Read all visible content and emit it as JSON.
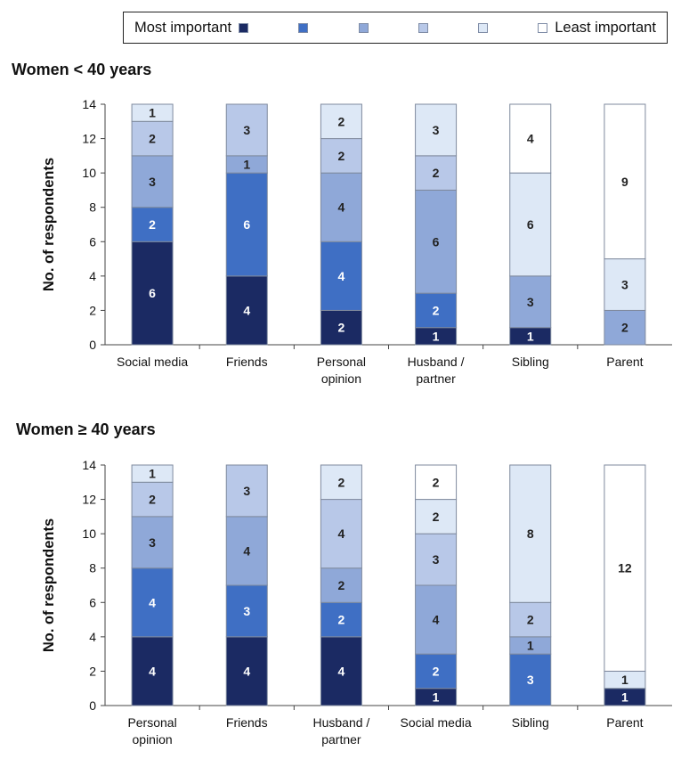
{
  "legend": {
    "items": [
      {
        "label": "Most important",
        "color": "#1b2a63"
      },
      {
        "label": "",
        "color": "#3f6fc4"
      },
      {
        "label": "",
        "color": "#8fa8d8"
      },
      {
        "label": "",
        "color": "#b8c8e8"
      },
      {
        "label": "",
        "color": "#dde8f6"
      },
      {
        "label": "Least important",
        "color": "#ffffff"
      }
    ]
  },
  "chart_data": [
    {
      "type": "bar",
      "stacked": true,
      "title": "Women < 40 years",
      "ylabel": "No. of respondents",
      "ylim": [
        0,
        14
      ],
      "yticks": [
        0,
        2,
        4,
        6,
        8,
        10,
        12,
        14
      ],
      "categories": [
        [
          "Social media"
        ],
        [
          "Friends"
        ],
        [
          "Personal",
          "opinion"
        ],
        [
          "Husband /",
          "partner"
        ],
        [
          "Sibling"
        ],
        [
          "Parent"
        ]
      ],
      "series": [
        {
          "values": [
            6,
            4,
            2,
            1,
            1,
            0
          ]
        },
        {
          "values": [
            2,
            6,
            4,
            2,
            0,
            0
          ]
        },
        {
          "values": [
            3,
            1,
            4,
            6,
            3,
            2
          ]
        },
        {
          "values": [
            2,
            3,
            2,
            2,
            0,
            0
          ]
        },
        {
          "values": [
            1,
            0,
            2,
            3,
            6,
            3
          ]
        },
        {
          "values": [
            0,
            0,
            0,
            0,
            4,
            9
          ]
        }
      ]
    },
    {
      "type": "bar",
      "stacked": true,
      "title": "Women ≥ 40 years",
      "ylabel": "No. of respondents",
      "ylim": [
        0,
        14
      ],
      "yticks": [
        0,
        2,
        4,
        6,
        8,
        10,
        12,
        14
      ],
      "categories": [
        [
          "Personal",
          "opinion"
        ],
        [
          "Friends"
        ],
        [
          "Husband /",
          "partner"
        ],
        [
          "Social media"
        ],
        [
          "Sibling"
        ],
        [
          "Parent"
        ]
      ],
      "series": [
        {
          "values": [
            4,
            4,
            4,
            1,
            0,
            1
          ]
        },
        {
          "values": [
            4,
            3,
            2,
            2,
            3,
            0
          ]
        },
        {
          "values": [
            3,
            4,
            2,
            4,
            1,
            0
          ]
        },
        {
          "values": [
            2,
            3,
            4,
            3,
            2,
            0
          ]
        },
        {
          "values": [
            1,
            0,
            2,
            2,
            8,
            1
          ]
        },
        {
          "values": [
            0,
            0,
            0,
            2,
            0,
            12
          ]
        }
      ]
    }
  ]
}
